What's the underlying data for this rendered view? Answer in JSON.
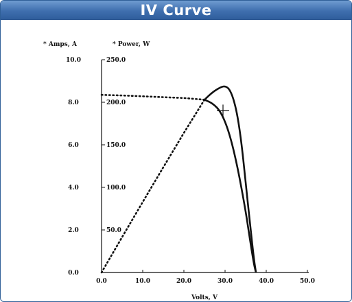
{
  "window": {
    "title": "IV Curve"
  },
  "chart_data": {
    "type": "line",
    "title": "IV Curve",
    "xlabel": "Volts, V",
    "ylabel_left": "* Amps, A",
    "ylabel_right": "* Power, W",
    "xlim": [
      0,
      50
    ],
    "ylim_current": [
      0,
      10
    ],
    "ylim_power": [
      0,
      250
    ],
    "x_ticks": [
      "0.0",
      "10.0",
      "20.0",
      "30.0",
      "40.0",
      "50.0"
    ],
    "current_ticks": [
      "0.0",
      "2.0",
      "4.0",
      "6.0",
      "8.0",
      "10.0"
    ],
    "power_ticks": [
      "50.0",
      "100.0",
      "150.0",
      "200.0",
      "250.0"
    ],
    "grid": false,
    "series": [
      {
        "axis": "current",
        "style": "dotted-then-solid",
        "x": [
          0,
          5,
          10,
          15,
          20,
          25,
          27,
          29,
          31,
          33,
          35,
          36,
          37,
          37.5
        ],
        "values": [
          8.35,
          8.32,
          8.28,
          8.24,
          8.2,
          8.12,
          7.95,
          7.55,
          6.6,
          5.0,
          2.9,
          1.6,
          0.4,
          0
        ]
      },
      {
        "axis": "power",
        "style": "dotted-then-solid",
        "x": [
          0,
          5,
          10,
          15,
          20,
          25,
          27,
          29,
          30,
          31,
          32,
          33,
          34,
          35,
          36,
          37,
          37.5
        ],
        "values": [
          0,
          41.6,
          82.8,
          123.6,
          164,
          203,
          212,
          218,
          219,
          216,
          205,
          185,
          152,
          106,
          60,
          16,
          0
        ]
      }
    ],
    "mpp_marker": {
      "x": 29.5,
      "current": 7.6
    }
  }
}
